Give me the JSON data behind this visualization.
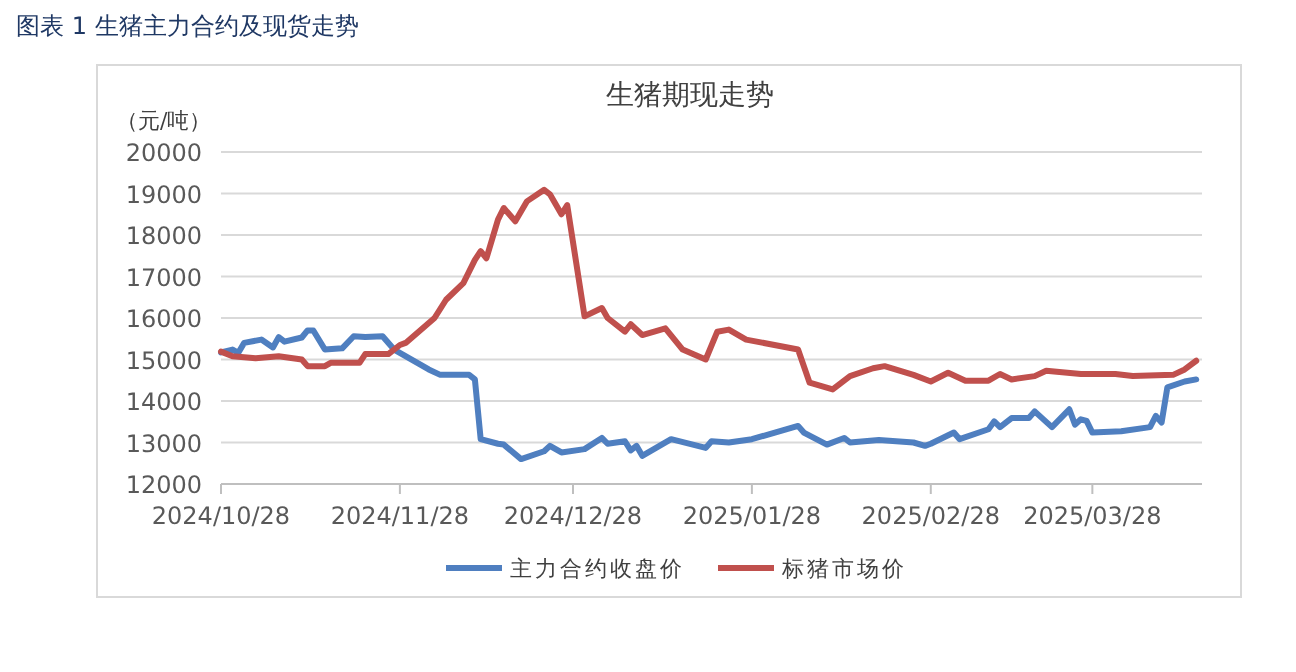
{
  "chart_data": {
    "type": "line",
    "title": "生猪期现走势",
    "ylabel": "（元/吨）",
    "annotations": [
      "图表 1  生猪主力合约及现货走势"
    ],
    "xlim": [
      "2024-10-28",
      "2025-04-16"
    ],
    "xticks": [
      {
        "value": "2024-10-28",
        "label": "2024/10/28"
      },
      {
        "value": "2024-11-28",
        "label": "2024/11/28"
      },
      {
        "value": "2024-12-28",
        "label": "2024/12/28"
      },
      {
        "value": "2025-01-28",
        "label": "2025/01/28"
      },
      {
        "value": "2025-02-28",
        "label": "2025/02/28"
      },
      {
        "value": "2025-03-28",
        "label": "2025/03/28"
      }
    ],
    "ylim": [
      12000,
      20000
    ],
    "yticks": [
      12000,
      13000,
      14000,
      15000,
      16000,
      17000,
      18000,
      19000,
      20000
    ],
    "grid": "y",
    "legend": "bottom",
    "marker": "none",
    "line_style": "solid",
    "series": [
      {
        "name": "主力合约收盘价",
        "color": "#4f7fc0",
        "x": [
          "2024-10-28",
          "2024-10-30",
          "2024-10-31",
          "2024-11-01",
          "2024-11-04",
          "2024-11-06",
          "2024-11-07",
          "2024-11-08",
          "2024-11-11",
          "2024-11-12",
          "2024-11-13",
          "2024-11-15",
          "2024-11-18",
          "2024-11-20",
          "2024-11-22",
          "2024-11-25",
          "2024-11-27",
          "2024-12-03",
          "2024-12-05",
          "2024-12-10",
          "2024-12-11",
          "2024-12-12",
          "2024-12-15",
          "2024-12-16",
          "2024-12-19",
          "2024-12-23",
          "2024-12-24",
          "2024-12-26",
          "2024-12-30",
          "2025-01-02",
          "2025-01-03",
          "2025-01-06",
          "2025-01-07",
          "2025-01-08",
          "2025-01-09",
          "2025-01-14",
          "2025-01-20",
          "2025-01-21",
          "2025-01-24",
          "2025-01-28",
          "2025-02-05",
          "2025-02-06",
          "2025-02-10",
          "2025-02-13",
          "2025-02-14",
          "2025-02-19",
          "2025-02-25",
          "2025-02-27",
          "2025-02-28",
          "2025-03-04",
          "2025-03-05",
          "2025-03-10",
          "2025-03-11",
          "2025-03-12",
          "2025-03-14",
          "2025-03-17",
          "2025-03-18",
          "2025-03-21",
          "2025-03-24",
          "2025-03-25",
          "2025-03-26",
          "2025-03-27",
          "2025-03-28",
          "2025-04-02",
          "2025-04-07",
          "2025-04-08",
          "2025-04-09",
          "2025-04-10",
          "2025-04-13",
          "2025-04-15"
        ],
        "values": [
          15170,
          15240,
          15160,
          15400,
          15480,
          15290,
          15540,
          15430,
          15530,
          15700,
          15700,
          15240,
          15270,
          15560,
          15540,
          15560,
          15240,
          14760,
          14630,
          14630,
          14520,
          13080,
          12970,
          12950,
          12600,
          12790,
          12920,
          12760,
          12840,
          13110,
          12970,
          13030,
          12810,
          12920,
          12680,
          13080,
          12870,
          13030,
          13000,
          13080,
          13400,
          13240,
          12950,
          13110,
          13000,
          13060,
          13000,
          12920,
          12970,
          13240,
          13080,
          13320,
          13510,
          13370,
          13590,
          13590,
          13750,
          13370,
          13800,
          13430,
          13560,
          13520,
          13240,
          13270,
          13370,
          13640,
          13480,
          14330,
          14470,
          14520
        ]
      },
      {
        "name": "标猪市场价",
        "color": "#c0504d",
        "x": [
          "2024-10-28",
          "2024-10-30",
          "2024-11-03",
          "2024-11-07",
          "2024-11-11",
          "2024-11-12",
          "2024-11-15",
          "2024-11-16",
          "2024-11-21",
          "2024-11-22",
          "2024-11-26",
          "2024-11-28",
          "2024-11-29",
          "2024-12-04",
          "2024-12-06",
          "2024-12-09",
          "2024-12-11",
          "2024-12-12",
          "2024-12-13",
          "2024-12-15",
          "2024-12-16",
          "2024-12-18",
          "2024-12-20",
          "2024-12-23",
          "2024-12-24",
          "2024-12-26",
          "2024-12-27",
          "2024-12-30",
          "2025-01-02",
          "2025-01-03",
          "2025-01-06",
          "2025-01-07",
          "2025-01-09",
          "2025-01-13",
          "2025-01-16",
          "2025-01-20",
          "2025-01-22",
          "2025-01-24",
          "2025-01-27",
          "2025-02-05",
          "2025-02-07",
          "2025-02-11",
          "2025-02-14",
          "2025-02-18",
          "2025-02-20",
          "2025-02-25",
          "2025-02-28",
          "2025-03-03",
          "2025-03-06",
          "2025-03-10",
          "2025-03-12",
          "2025-03-14",
          "2025-03-18",
          "2025-03-20",
          "2025-03-26",
          "2025-04-01",
          "2025-04-04",
          "2025-04-11",
          "2025-04-13",
          "2025-04-15"
        ],
        "values": [
          15190,
          15080,
          15030,
          15080,
          15000,
          14840,
          14840,
          14920,
          14920,
          15130,
          15130,
          15350,
          15400,
          16000,
          16440,
          16840,
          17400,
          17610,
          17440,
          18370,
          18650,
          18330,
          18810,
          19090,
          18980,
          18500,
          18720,
          16040,
          16240,
          16000,
          15670,
          15850,
          15590,
          15750,
          15240,
          15000,
          15670,
          15720,
          15480,
          15240,
          14440,
          14280,
          14600,
          14790,
          14840,
          14630,
          14470,
          14680,
          14490,
          14490,
          14650,
          14520,
          14600,
          14730,
          14650,
          14650,
          14600,
          14630,
          14760,
          14970
        ]
      }
    ]
  }
}
